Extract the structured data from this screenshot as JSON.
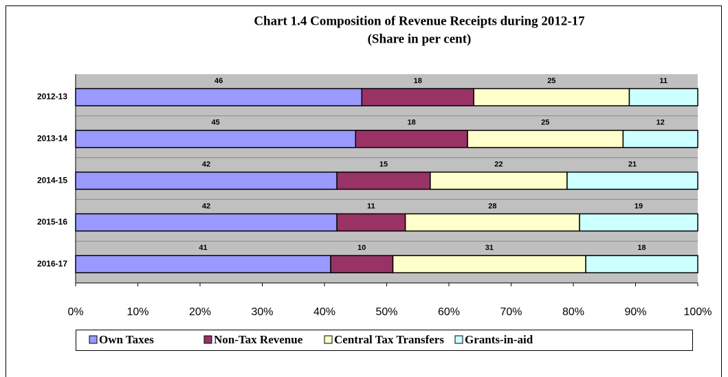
{
  "chart_data": {
    "type": "stacked_barh",
    "title": "Chart 1.4 Composition of Revenue Receipts during 2012-17",
    "subtitle": "(Share in per cent)",
    "categories": [
      "2012-13",
      "2013-14",
      "2014-15",
      "2015-16",
      "2016-17"
    ],
    "series": [
      {
        "name": "Own Taxes",
        "color": "#9999ff",
        "values": [
          46,
          45,
          42,
          42,
          41
        ]
      },
      {
        "name": "Non-Tax Revenue",
        "color": "#993366",
        "values": [
          18,
          18,
          15,
          11,
          10
        ]
      },
      {
        "name": "Central Tax Transfers",
        "color": "#ffffcc",
        "values": [
          25,
          25,
          22,
          28,
          31
        ]
      },
      {
        "name": "Grants-in-aid",
        "color": "#ccffff",
        "values": [
          11,
          12,
          21,
          19,
          18
        ]
      }
    ],
    "xlim": [
      0,
      100
    ],
    "xticks": [
      {
        "value": 0,
        "label": "0%"
      },
      {
        "value": 10,
        "label": "10%"
      },
      {
        "value": 20,
        "label": "20%"
      },
      {
        "value": 30,
        "label": "30%"
      },
      {
        "value": 40,
        "label": "40%"
      },
      {
        "value": 50,
        "label": "50%"
      },
      {
        "value": 60,
        "label": "60%"
      },
      {
        "value": 70,
        "label": "70%"
      },
      {
        "value": 80,
        "label": "80%"
      },
      {
        "value": 90,
        "label": "90%"
      },
      {
        "value": 100,
        "label": "100%"
      }
    ],
    "legend": "bottom"
  }
}
